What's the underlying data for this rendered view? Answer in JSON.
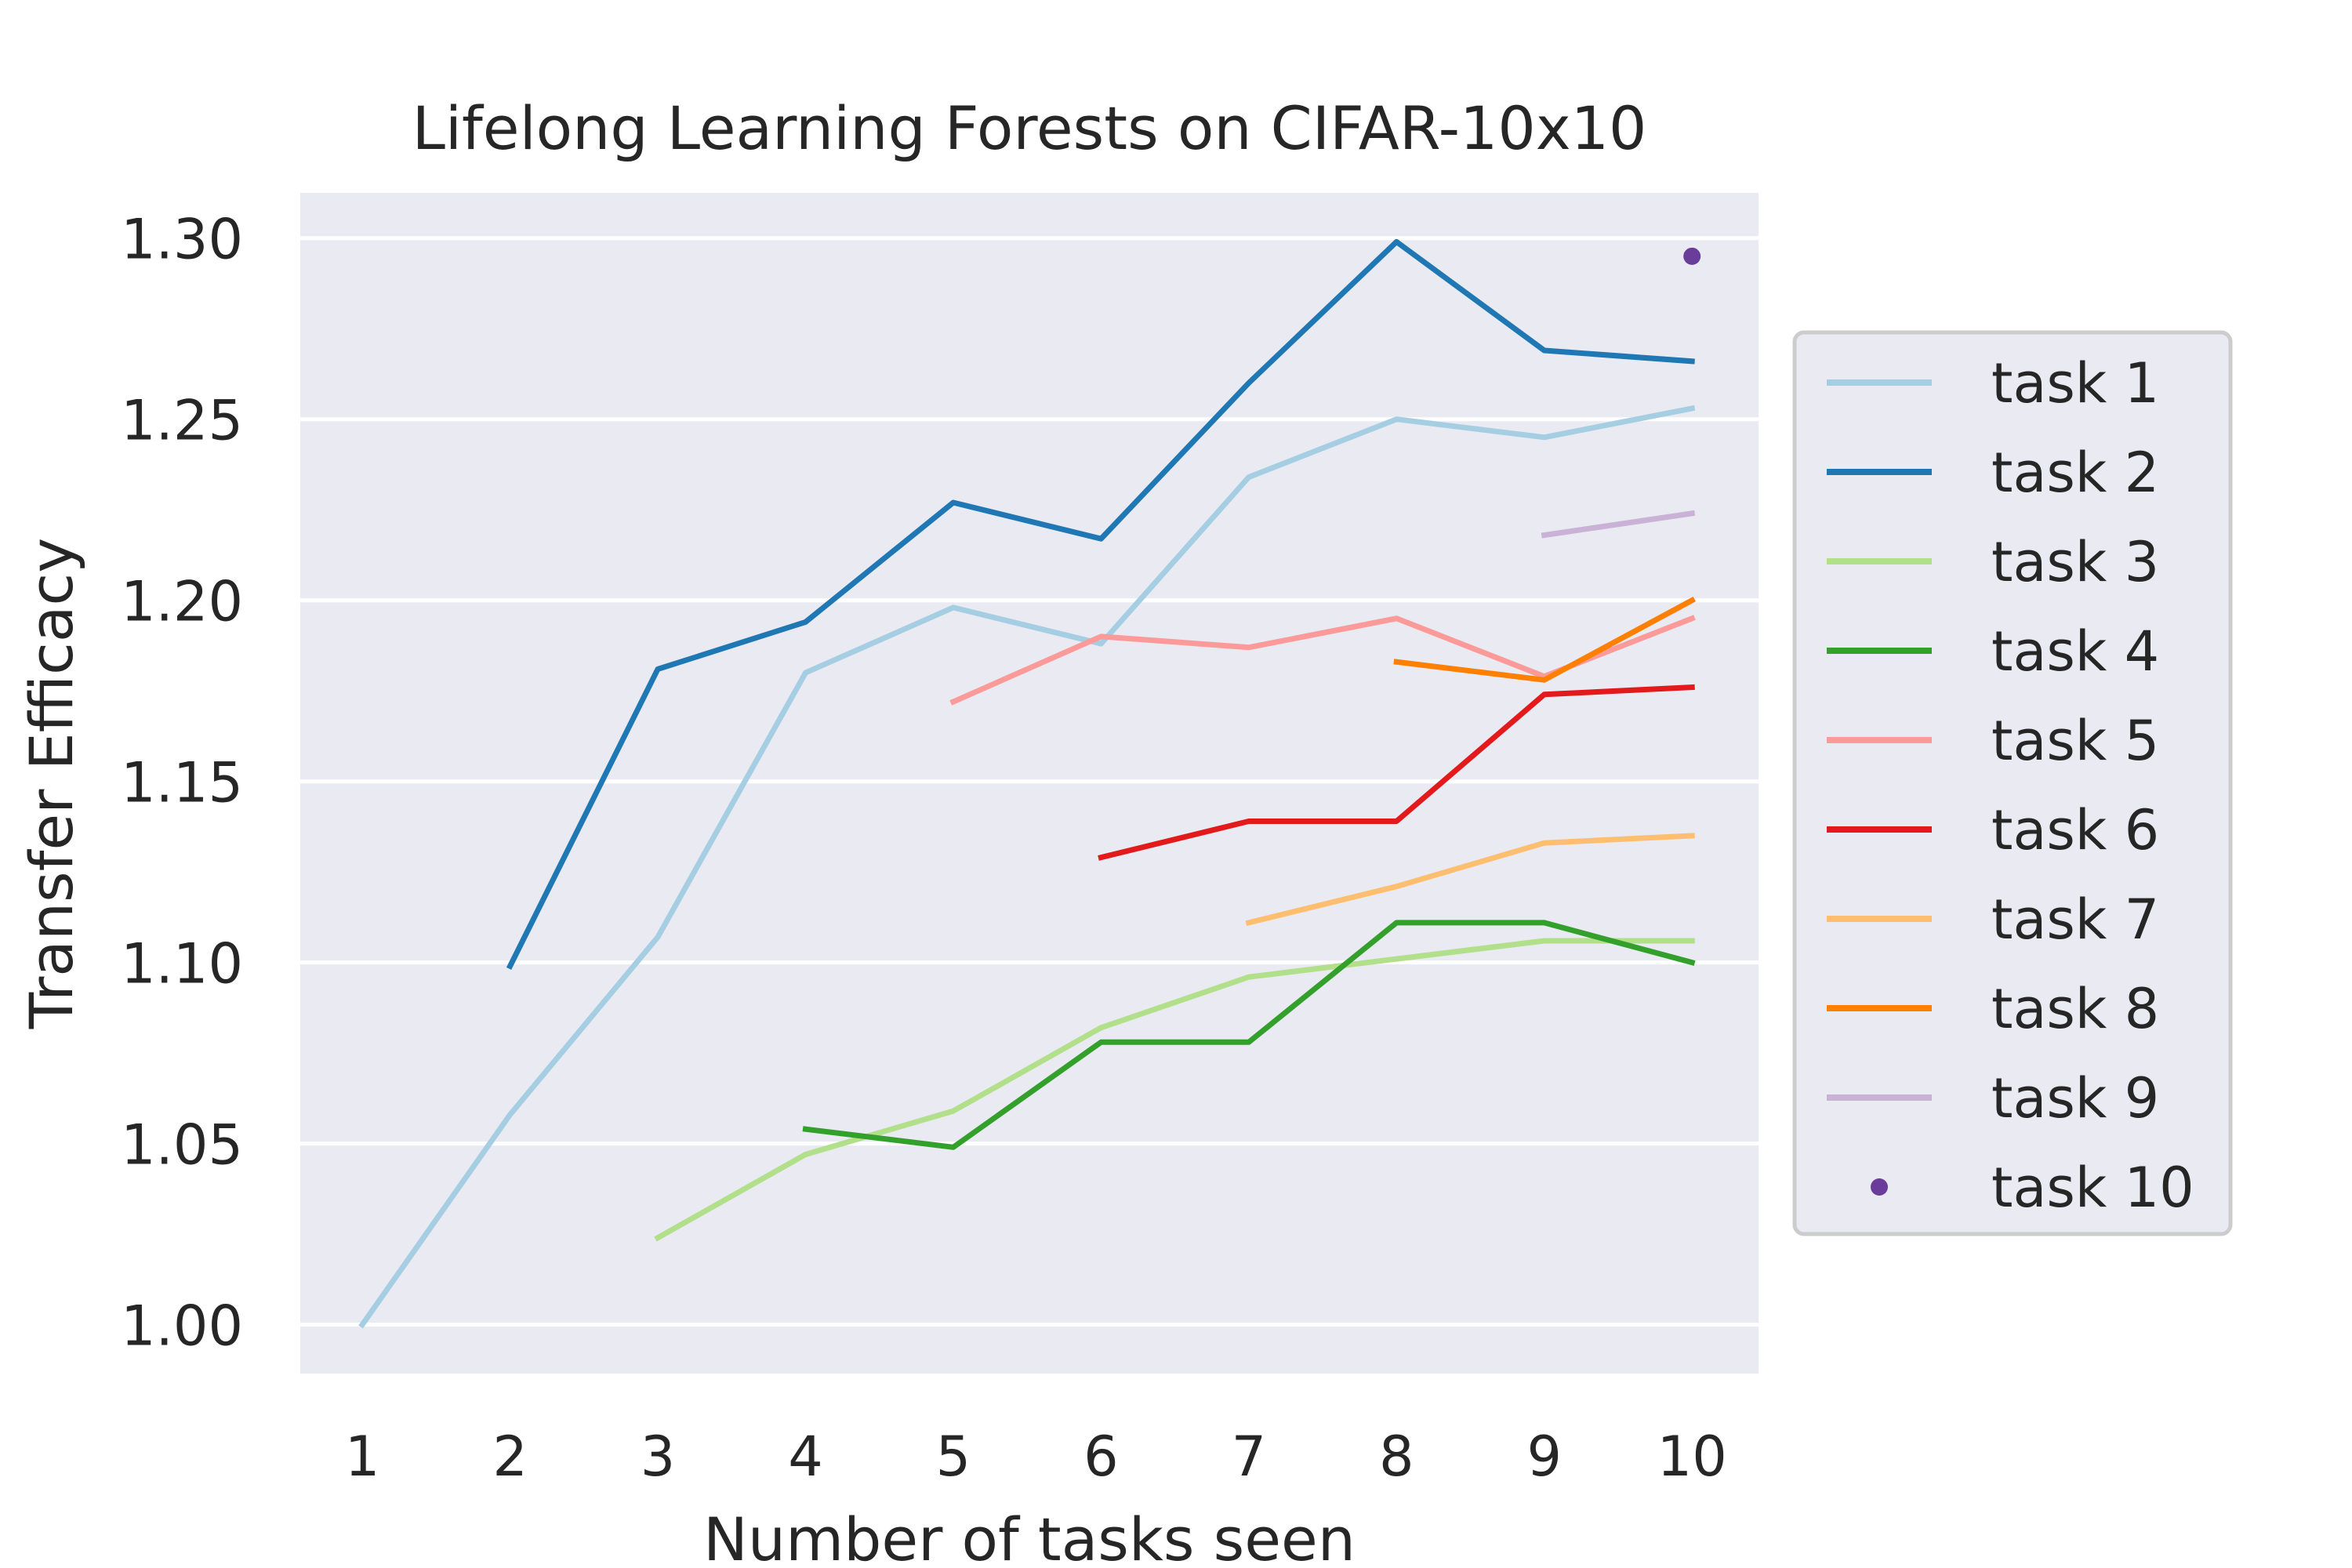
{
  "chart_data": {
    "type": "line",
    "title": "Lifelong Learning Forests on CIFAR-10x10",
    "xlabel": "Number of tasks seen",
    "ylabel": "Transfer Efficacy",
    "xlim": [
      0.58,
      10.45
    ],
    "ylim": [
      0.9865,
      1.3125
    ],
    "xticks": [
      1,
      2,
      3,
      4,
      5,
      6,
      7,
      8,
      9,
      10
    ],
    "xtick_labels": [
      "1",
      "2",
      "3",
      "4",
      "5",
      "6",
      "7",
      "8",
      "9",
      "10"
    ],
    "yticks": [
      1.0,
      1.05,
      1.1,
      1.15,
      1.2,
      1.25,
      1.3
    ],
    "ytick_labels": [
      "1.00",
      "1.05",
      "1.10",
      "1.15",
      "1.20",
      "1.25",
      "1.30"
    ],
    "grid": "horizontal",
    "legend_position": "right-outside",
    "series": [
      {
        "name": "task 1",
        "color": "#a6cee3",
        "style": "line",
        "x": [
          1,
          2,
          3,
          4,
          5,
          6,
          7,
          8,
          9,
          10
        ],
        "values": [
          1.0,
          1.058,
          1.107,
          1.18,
          1.198,
          1.188,
          1.234,
          1.25,
          1.245,
          1.253
        ]
      },
      {
        "name": "task 2",
        "color": "#1f78b4",
        "style": "line",
        "x": [
          2,
          3,
          4,
          5,
          6,
          7,
          8,
          9,
          10
        ],
        "values": [
          1.099,
          1.181,
          1.194,
          1.227,
          1.217,
          1.26,
          1.299,
          1.269,
          1.266
        ]
      },
      {
        "name": "task 3",
        "color": "#b2df8a",
        "style": "line",
        "x": [
          3,
          4,
          5,
          6,
          7,
          8,
          9,
          10
        ],
        "values": [
          1.024,
          1.047,
          1.059,
          1.082,
          1.096,
          1.101,
          1.106,
          1.106
        ]
      },
      {
        "name": "task 4",
        "color": "#33a02c",
        "style": "line",
        "x": [
          4,
          5,
          6,
          7,
          8,
          9,
          10
        ],
        "values": [
          1.054,
          1.049,
          1.078,
          1.078,
          1.111,
          1.111,
          1.1
        ]
      },
      {
        "name": "task 5",
        "color": "#fb9a99",
        "style": "line",
        "x": [
          5,
          6,
          7,
          8,
          9,
          10
        ],
        "values": [
          1.172,
          1.19,
          1.187,
          1.195,
          1.179,
          1.195
        ]
      },
      {
        "name": "task 6",
        "color": "#e31a1c",
        "style": "line",
        "x": [
          6,
          7,
          8,
          9,
          10
        ],
        "values": [
          1.129,
          1.139,
          1.139,
          1.174,
          1.176
        ]
      },
      {
        "name": "task 7",
        "color": "#fdbf6f",
        "style": "line",
        "x": [
          7,
          8,
          9,
          10
        ],
        "values": [
          1.111,
          1.121,
          1.133,
          1.135
        ]
      },
      {
        "name": "task 8",
        "color": "#ff7f00",
        "style": "line",
        "x": [
          8,
          9,
          10
        ],
        "values": [
          1.183,
          1.178,
          1.2
        ]
      },
      {
        "name": "task 9",
        "color": "#cab2d6",
        "style": "line",
        "x": [
          9,
          10
        ],
        "values": [
          1.218,
          1.224
        ]
      },
      {
        "name": "task 10",
        "color": "#6a3d9a",
        "style": "point",
        "x": [
          10
        ],
        "values": [
          1.295
        ]
      }
    ]
  }
}
